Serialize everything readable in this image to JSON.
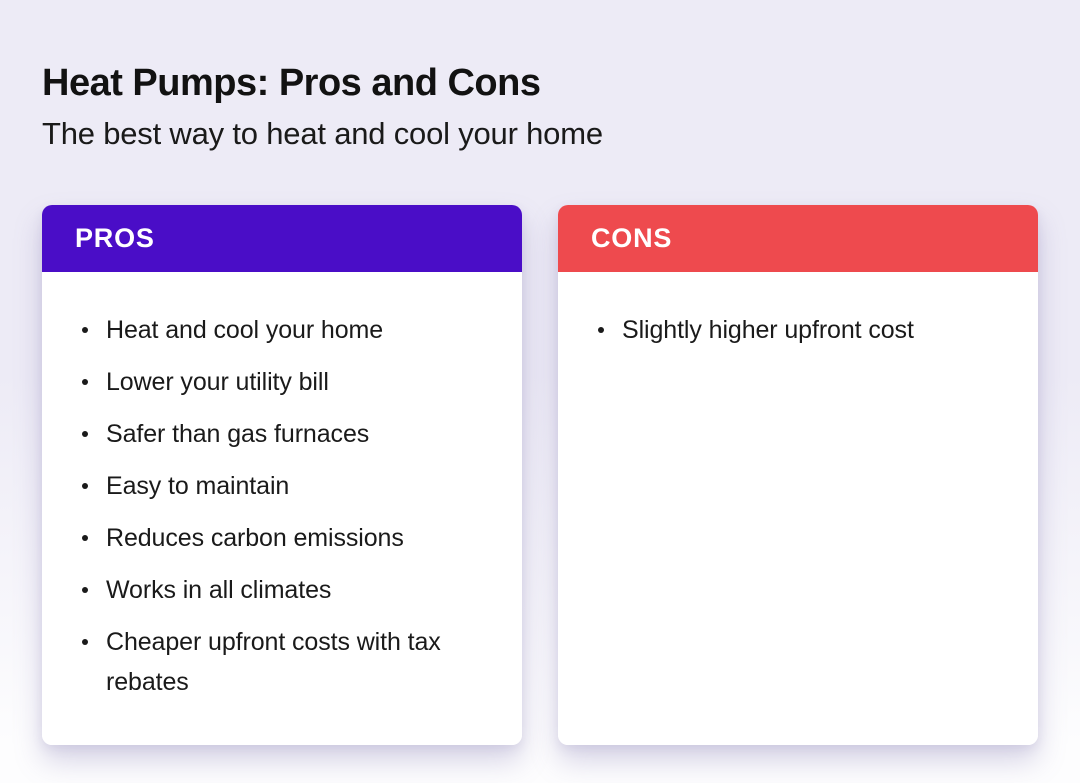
{
  "page": {
    "title": "Heat Pumps: Pros and Cons",
    "subtitle": "The best way to heat and cool your home"
  },
  "colors": {
    "background_top": "#EDEBF6",
    "background_bottom": "#FDFDFE",
    "pros_header": "#4A0DC7",
    "cons_header": "#EE4A4E",
    "card_body": "#FFFFFF",
    "text": "#1A1A1A"
  },
  "cards": {
    "pros": {
      "label": "PROS",
      "items": [
        "Heat and cool your home",
        "Lower your utility bill",
        "Safer than gas furnaces",
        "Easy to maintain",
        "Reduces carbon emissions",
        "Works in all climates",
        "Cheaper upfront costs with tax rebates"
      ]
    },
    "cons": {
      "label": "CONS",
      "items": [
        "Slightly higher upfront cost"
      ]
    }
  }
}
